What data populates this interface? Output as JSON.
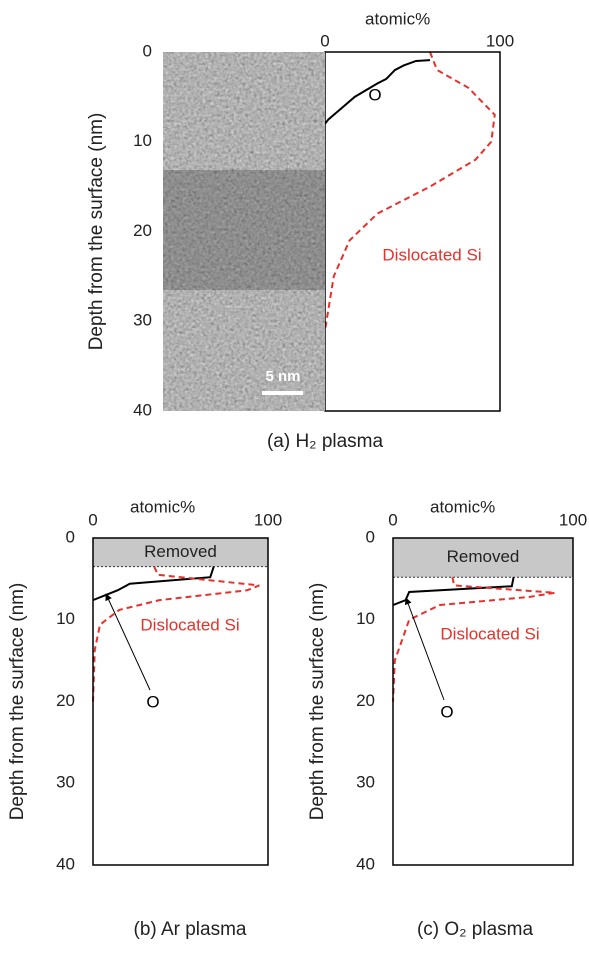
{
  "chart_data": [
    {
      "type": "line",
      "xlabel": "atomic%",
      "ylabel": "Depth from the surface (nm)",
      "caption": "(a) H₂ plasma",
      "xlim": [
        0,
        100
      ],
      "xticks": [
        0,
        100
      ],
      "ylim": [
        0,
        40
      ],
      "yticks": [
        0,
        10,
        20,
        30,
        40
      ],
      "y_inverted": true,
      "image": {
        "scale_label": "5 nm"
      },
      "series": [
        {
          "name": "O",
          "color": "#000000",
          "dashed": false,
          "x": [
            60,
            52,
            45,
            40,
            35,
            30,
            17,
            8,
            2,
            0
          ],
          "values": [
            0.9,
            1.0,
            1.5,
            2,
            3,
            3.5,
            5,
            6.5,
            7.5,
            8
          ]
        },
        {
          "name": "Dislocated Si",
          "color": "#e8302a",
          "dashed": true,
          "x": [
            60,
            64,
            82,
            97,
            95,
            86,
            60,
            30,
            14,
            5,
            0
          ],
          "values": [
            0,
            2,
            4,
            7,
            10,
            12,
            15,
            18,
            21,
            25,
            31
          ]
        }
      ]
    },
    {
      "type": "line",
      "xlabel": "atomic%",
      "ylabel": "Depth from the surface (nm)",
      "caption": "(b) Ar plasma",
      "xlim": [
        0,
        100
      ],
      "xticks": [
        0,
        100
      ],
      "ylim": [
        0,
        40
      ],
      "yticks": [
        0,
        10,
        20,
        30,
        40
      ],
      "y_inverted": true,
      "shaded_region": {
        "label": "Removed",
        "ylim": [
          0,
          3.5
        ]
      },
      "series": [
        {
          "name": "O",
          "color": "#000000",
          "dashed": false,
          "x": [
            69,
            67,
            21,
            14,
            0
          ],
          "values": [
            3.5,
            4.8,
            5.6,
            6.4,
            7.6
          ]
        },
        {
          "name": "Dislocated Si",
          "color": "#e8302a",
          "dashed": true,
          "x": [
            35,
            37,
            95,
            88,
            38,
            15,
            4,
            1,
            0
          ],
          "values": [
            3.5,
            4.5,
            5.8,
            6.4,
            7.6,
            8.8,
            10.6,
            13.7,
            20
          ]
        }
      ]
    },
    {
      "type": "line",
      "xlabel": "atomic%",
      "ylabel": "Depth from the surface (nm)",
      "caption": "(c) O₂ plasma",
      "xlim": [
        0,
        100
      ],
      "xticks": [
        0,
        100
      ],
      "ylim": [
        0,
        40
      ],
      "yticks": [
        0,
        10,
        20,
        30,
        40
      ],
      "y_inverted": true,
      "shaded_region": {
        "label": "Removed",
        "ylim": [
          0,
          4.8
        ]
      },
      "series": [
        {
          "name": "O",
          "color": "#000000",
          "dashed": false,
          "x": [
            67,
            66,
            9,
            7,
            0
          ],
          "values": [
            4.8,
            5.9,
            6.6,
            7.6,
            8.2
          ]
        },
        {
          "name": "Dislocated Si",
          "color": "#e8302a",
          "dashed": true,
          "x": [
            33,
            34,
            90,
            76,
            26,
            9,
            1,
            0
          ],
          "values": [
            4.8,
            5.8,
            6.7,
            7.2,
            8.2,
            10,
            15,
            20
          ]
        }
      ]
    }
  ]
}
